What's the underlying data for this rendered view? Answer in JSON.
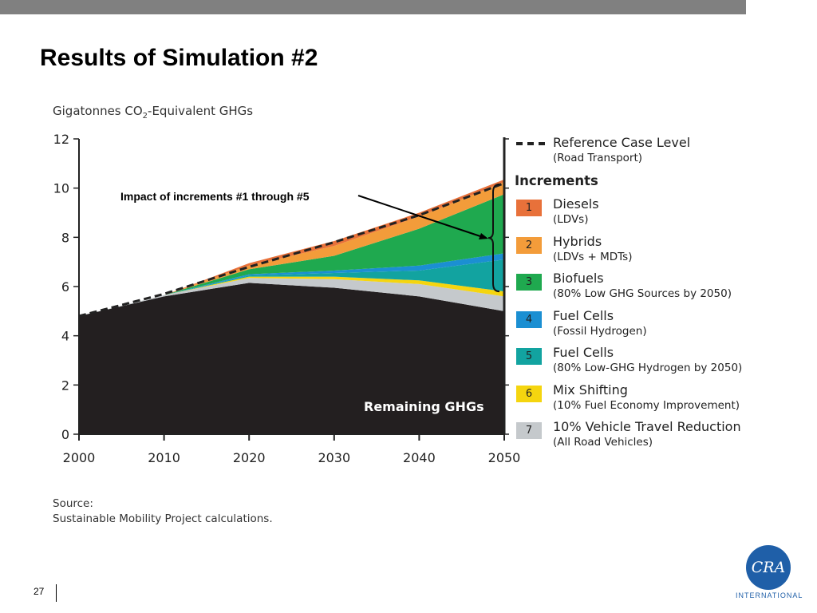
{
  "slide": {
    "title": "Results of Simulation #2",
    "page_number": "27",
    "source_label": "Source:",
    "source_text": "Sustainable Mobility Project calculations.",
    "logo_text": "INTERNATIONAL",
    "logo_mark": "CRA"
  },
  "colors": {
    "remaining": "#231f20",
    "diesels": "#e8713a",
    "hybrids": "#f39c3a",
    "biofuels": "#1fa94f",
    "fuel_cells_fossil": "#1b8fd2",
    "fuel_cells_low": "#12a3a0",
    "mix_shifting": "#f5d50f",
    "travel_reduction": "#c5c9cc",
    "reference": "#222222"
  },
  "chart_data": {
    "type": "area",
    "title": "Gigatonnes CO2-Equivalent GHGs",
    "title_main": "Gigatonnes CO",
    "title_sub": "2",
    "title_tail": "-Equivalent GHGs",
    "ylabel": "",
    "xlabel": "",
    "x": [
      2000,
      2010,
      2020,
      2030,
      2040,
      2050
    ],
    "xticks": [
      "2000",
      "2010",
      "2020",
      "2030",
      "2040",
      "2050"
    ],
    "yticks": [
      "0",
      "2",
      "4",
      "6",
      "8",
      "10",
      "12"
    ],
    "ylim": [
      0,
      12
    ],
    "xlim": [
      2000,
      2050
    ],
    "reference": {
      "name": "Reference Case Level",
      "desc": "(Road Transport)",
      "values": [
        4.8,
        5.7,
        6.8,
        7.8,
        8.9,
        10.2
      ]
    },
    "remaining": {
      "name": "Remaining GHGs",
      "values": [
        4.8,
        5.6,
        6.15,
        5.95,
        5.6,
        5.0
      ]
    },
    "increments_title": "Increments",
    "series": [
      {
        "name": "7",
        "label": "10% Vehicle Travel Reduction",
        "desc": "(All Road Vehicles)",
        "color_key": "travel_reduction",
        "values": [
          0,
          0.05,
          0.2,
          0.35,
          0.5,
          0.6
        ]
      },
      {
        "name": "6",
        "label": "Mix Shifting",
        "desc": "(10% Fuel Economy Improvement)",
        "color_key": "mix_shifting",
        "values": [
          0,
          0,
          0.05,
          0.1,
          0.15,
          0.2
        ]
      },
      {
        "name": "5",
        "label": "Fuel Cells",
        "desc": "(80% Low-GHG Hydrogen by 2050)",
        "color_key": "fuel_cells_low",
        "values": [
          0,
          0,
          0.05,
          0.15,
          0.4,
          1.3
        ]
      },
      {
        "name": "4",
        "label": "Fuel Cells",
        "desc": "(Fossil Hydrogen)",
        "color_key": "fuel_cells_fossil",
        "values": [
          0,
          0,
          0.05,
          0.1,
          0.2,
          0.25
        ]
      },
      {
        "name": "3",
        "label": "Biofuels",
        "desc": "(80% Low GHG Sources by 2050)",
        "color_key": "biofuels",
        "values": [
          0,
          0,
          0.2,
          0.6,
          1.5,
          2.4
        ]
      },
      {
        "name": "2",
        "label": "Hybrids",
        "desc": "(LDVs + MDTs)",
        "color_key": "hybrids",
        "values": [
          0,
          0,
          0.15,
          0.4,
          0.5,
          0.5
        ]
      },
      {
        "name": "1",
        "label": "Diesels",
        "desc": "(LDVs)",
        "color_key": "diesels",
        "values": [
          0,
          0,
          0.1,
          0.2,
          0.15,
          0.1
        ]
      }
    ],
    "annotations": {
      "bracket_text": "Impact of increments #1 through #5",
      "remaining_label": "Remaining GHGs"
    },
    "grid": false,
    "legend_position": "right"
  }
}
